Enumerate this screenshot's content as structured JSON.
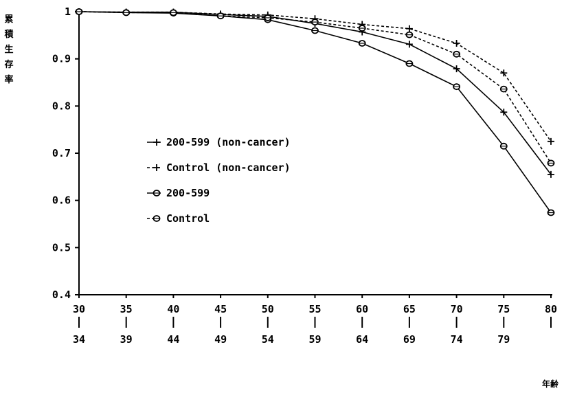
{
  "chart_data": {
    "type": "line",
    "title": "",
    "ylabel": "累積生存率",
    "xlabel": "年齢",
    "ylim": [
      0.4,
      1.0
    ],
    "yticks": [
      "0.4",
      "0.5",
      "0.6",
      "0.7",
      "0.8",
      "0.9",
      "1"
    ],
    "categories": [
      "30-34",
      "35-39",
      "40-44",
      "45-49",
      "50-54",
      "55-59",
      "60-64",
      "65-69",
      "70-74",
      "75-79",
      "80-"
    ],
    "xtick_top": [
      "30",
      "35",
      "40",
      "45",
      "50",
      "55",
      "60",
      "65",
      "70",
      "75",
      "80"
    ],
    "xtick_bottom": [
      "34",
      "39",
      "44",
      "49",
      "54",
      "59",
      "64",
      "69",
      "74",
      "79",
      ""
    ],
    "grid": false,
    "legend_position": "center-left",
    "series": [
      {
        "name": "200-599 (non-cancer)",
        "marker": "plus",
        "dash": "solid",
        "values": [
          1.0,
          0.999,
          0.999,
          0.994,
          0.99,
          0.975,
          0.957,
          0.931,
          0.879,
          0.787,
          0.655
        ]
      },
      {
        "name": "Control (non-cancer)",
        "marker": "plus",
        "dash": "dashed",
        "values": [
          1.0,
          0.999,
          0.999,
          0.995,
          0.993,
          0.985,
          0.973,
          0.964,
          0.933,
          0.87,
          0.725
        ]
      },
      {
        "name": "200-599",
        "marker": "circle",
        "dash": "solid",
        "values": [
          1.0,
          0.998,
          0.997,
          0.991,
          0.983,
          0.96,
          0.933,
          0.89,
          0.841,
          0.715,
          0.574
        ]
      },
      {
        "name": "Control",
        "marker": "circle",
        "dash": "dashed",
        "values": [
          1.0,
          0.998,
          0.998,
          0.991,
          0.987,
          0.978,
          0.965,
          0.951,
          0.91,
          0.836,
          0.679
        ]
      }
    ]
  }
}
